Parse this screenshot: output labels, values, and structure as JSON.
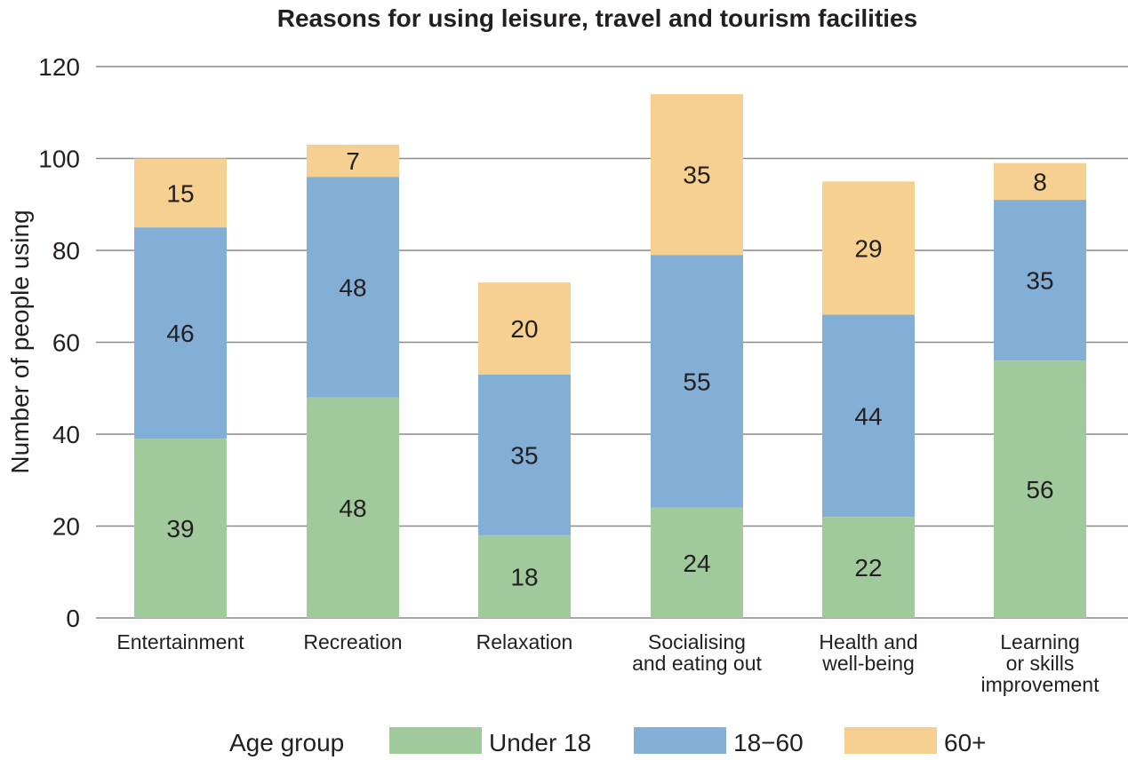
{
  "chart_data": {
    "type": "bar",
    "stacked": true,
    "title": "Reasons for using leisure, travel and tourism facilities",
    "xlabel": "",
    "ylabel": "Number of people using",
    "ylim": [
      0,
      120
    ],
    "yticks": [
      "0",
      "20",
      "40",
      "60",
      "80",
      "100",
      "120"
    ],
    "grid": true,
    "legend_position": "bottom",
    "legend_title": "Age group",
    "categories": [
      [
        "Entertainment"
      ],
      [
        "Recreation"
      ],
      [
        "Relaxation"
      ],
      [
        "Socialising",
        "and eating out"
      ],
      [
        "Health and",
        "well-being"
      ],
      [
        "Learning",
        "or skills",
        "improvement"
      ]
    ],
    "series": [
      {
        "name": "Under 18",
        "color": "#a0ca9c",
        "values": [
          39,
          48,
          18,
          24,
          22,
          56
        ]
      },
      {
        "name": "18−60",
        "color": "#83aed5",
        "values": [
          46,
          48,
          35,
          55,
          44,
          35
        ]
      },
      {
        "name": "60+",
        "color": "#f5d091",
        "values": [
          15,
          7,
          20,
          35,
          29,
          8
        ]
      }
    ],
    "gridline_color": "#8a8a8a",
    "text_color": "#231f20"
  }
}
